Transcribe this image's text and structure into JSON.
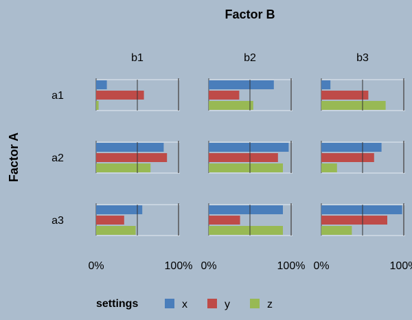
{
  "chart_data": {
    "type": "bar",
    "orientation": "horizontal",
    "title": "Factor B",
    "row_factor_label": "Factor A",
    "column_categories": [
      "b1",
      "b2",
      "b3"
    ],
    "row_categories": [
      "a1",
      "a2",
      "a3"
    ],
    "x_tick_labels": [
      "0%",
      "100%"
    ],
    "xlim": [
      0,
      1
    ],
    "grid": true,
    "legend": {
      "title": "settings",
      "position": "bottom"
    },
    "series": [
      {
        "name": "x",
        "color": "#4A7EBB"
      },
      {
        "name": "y",
        "color": "#BE4B48"
      },
      {
        "name": "z",
        "color": "#98B954"
      }
    ],
    "panels": [
      {
        "row": "a1",
        "col": "b1",
        "values": [
          0.13,
          0.58,
          0.03
        ]
      },
      {
        "row": "a1",
        "col": "b2",
        "values": [
          0.79,
          0.37,
          0.54
        ]
      },
      {
        "row": "a1",
        "col": "b3",
        "values": [
          0.11,
          0.57,
          0.78
        ]
      },
      {
        "row": "a2",
        "col": "b1",
        "values": [
          0.82,
          0.86,
          0.66
        ]
      },
      {
        "row": "a2",
        "col": "b2",
        "values": [
          0.97,
          0.84,
          0.9
        ]
      },
      {
        "row": "a2",
        "col": "b3",
        "values": [
          0.73,
          0.64,
          0.19
        ]
      },
      {
        "row": "a3",
        "col": "b1",
        "values": [
          0.56,
          0.34,
          0.48
        ]
      },
      {
        "row": "a3",
        "col": "b2",
        "values": [
          0.9,
          0.38,
          0.9
        ]
      },
      {
        "row": "a3",
        "col": "b3",
        "values": [
          0.98,
          0.8,
          0.37
        ]
      }
    ]
  }
}
